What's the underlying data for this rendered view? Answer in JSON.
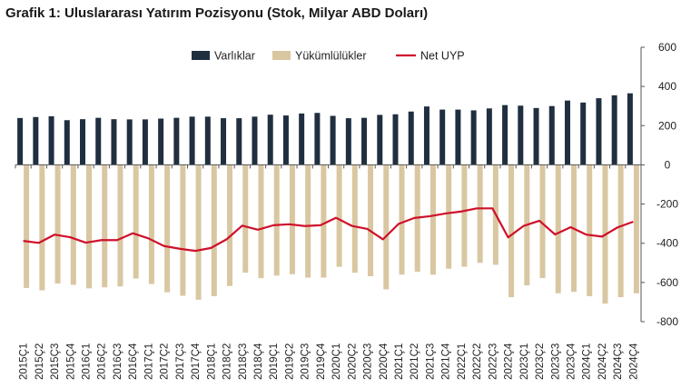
{
  "title": "Grafik 1: Uluslararası Yatırım Pozisyonu (Stok, Milyar ABD Doları)",
  "chart_data": {
    "type": "bar",
    "categories": [
      "2015Ç1",
      "2015Ç2",
      "2015Ç3",
      "2015Ç4",
      "2016Ç1",
      "2016Ç2",
      "2016Ç3",
      "2016Ç4",
      "2017Ç1",
      "2017Ç2",
      "2017Ç3",
      "2017Ç4",
      "2018Ç1",
      "2018Ç2",
      "2018Ç3",
      "2018Ç4",
      "2019Ç1",
      "2019Ç2",
      "2019Ç3",
      "2019Ç4",
      "2020Ç1",
      "2020Ç2",
      "2020Ç3",
      "2020Ç4",
      "2021Ç1",
      "2021Ç2",
      "2021Ç3",
      "2021Ç4",
      "2022Ç1",
      "2022Ç2",
      "2022Ç3",
      "2022Ç4",
      "2023Ç1",
      "2023Ç2",
      "2023Ç3",
      "2023Ç4",
      "2024Ç1",
      "2024Ç2",
      "2024Ç3",
      "2024Ç4"
    ],
    "series": [
      {
        "name": "Varlıklar",
        "type": "bar",
        "color": "#1f2f40",
        "values": [
          239,
          244,
          248,
          228,
          233,
          240,
          233,
          232,
          232,
          236,
          240,
          246,
          246,
          238,
          238,
          246,
          256,
          252,
          262,
          265,
          250,
          238,
          240,
          255,
          258,
          272,
          298,
          282,
          282,
          278,
          288,
          305,
          302,
          290,
          300,
          328,
          318,
          340,
          355,
          365
        ]
      },
      {
        "name": "Yükümlülükler",
        "type": "bar",
        "color": "#d9c7a2",
        "values": [
          -628,
          -640,
          -605,
          -612,
          -630,
          -625,
          -620,
          -580,
          -608,
          -650,
          -668,
          -688,
          -670,
          -618,
          -550,
          -578,
          -565,
          -558,
          -575,
          -575,
          -520,
          -550,
          -568,
          -635,
          -560,
          -545,
          -560,
          -530,
          -520,
          -500,
          -510,
          -675,
          -615,
          -578,
          -655,
          -648,
          -670,
          -708,
          -675,
          -655
        ]
      },
      {
        "name": "Net UYP",
        "type": "line",
        "color": "#d0102a",
        "values": [
          -388,
          -398,
          -356,
          -369,
          -397,
          -384,
          -384,
          -349,
          -375,
          -414,
          -428,
          -439,
          -424,
          -380,
          -310,
          -331,
          -308,
          -303,
          -312,
          -308,
          -270,
          -311,
          -327,
          -380,
          -301,
          -271,
          -262,
          -248,
          -238,
          -222,
          -222,
          -370,
          -311,
          -285,
          -355,
          -318,
          -356,
          -366,
          -319,
          -290
        ]
      }
    ],
    "ylim": [
      -800,
      600
    ],
    "yticks": [
      600,
      400,
      200,
      0,
      -200,
      -400,
      -600,
      -800
    ],
    "ylabel": "",
    "xlabel": "",
    "legend": {
      "position": "top-center",
      "entries": [
        "Varlıklar",
        "Yükümlülükler",
        "Net UYP"
      ]
    },
    "grid": false,
    "y_axis_side": "right"
  }
}
